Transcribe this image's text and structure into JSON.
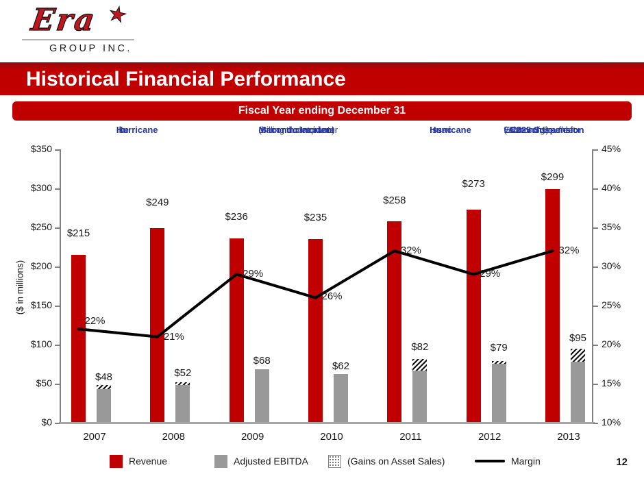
{
  "logo": {
    "brand": "Era",
    "star": "★",
    "subtitle": "GROUP INC."
  },
  "header": {
    "title": "Historical Financial Performance"
  },
  "subheader": {
    "label": "Fiscal Year ending December 31"
  },
  "page_number": "12",
  "colors": {
    "accent_red": "#c00000",
    "bar_gray": "#999999",
    "annotation_blue": "#2438a6",
    "axis_line": "#808080",
    "baseline": "#a6a6a6",
    "text": "#1a1a1a",
    "margin_line": "#000000"
  },
  "chart_data": {
    "type": "bar",
    "subtype": "grouped-bars-with-line-overlay",
    "categories": [
      "2007",
      "2008",
      "2009",
      "2010",
      "2011",
      "2012",
      "2013"
    ],
    "series": [
      {
        "name": "Revenue",
        "type": "bar",
        "axis": "left",
        "color": "#c00000",
        "values": [
          215,
          249,
          236,
          235,
          258,
          273,
          299
        ],
        "value_labels": [
          "$215",
          "$249",
          "$236",
          "$235",
          "$258",
          "$273",
          "$299"
        ]
      },
      {
        "name": "Adjusted EBITDA",
        "type": "bar",
        "axis": "left",
        "color": "#999999",
        "values": [
          48,
          52,
          68,
          62,
          82,
          79,
          95
        ],
        "value_labels": [
          "$48",
          "$52",
          "$68",
          "$62",
          "$82",
          "$79",
          "$95"
        ],
        "gains_on_asset_sales_portion": [
          5,
          4,
          0,
          0,
          15,
          4,
          17
        ]
      },
      {
        "name": "Margin",
        "type": "line",
        "axis": "right",
        "color": "#000000",
        "values": [
          22,
          21,
          29,
          26,
          32,
          29,
          32
        ],
        "value_labels": [
          "22%",
          "21%",
          "29%",
          "26%",
          "32%",
          "29%",
          "32%"
        ]
      }
    ],
    "left_axis": {
      "title": "($ in millions)",
      "min": 0,
      "max": 350,
      "tick_labels": [
        "$350",
        "$300",
        "$250",
        "$200",
        "$150",
        "$100",
        "$50",
        "$0"
      ]
    },
    "right_axis": {
      "min": 10,
      "max": 45,
      "tick_labels": [
        "45%",
        "40%",
        "35%",
        "30%",
        "25%",
        "20%",
        "15%",
        "10%"
      ]
    },
    "gridlines": false,
    "legend_position": "bottom",
    "annotations": [
      {
        "anchor_category": "2008",
        "bold_lines": [
          "Hurricane",
          "Ike"
        ],
        "normal_lines": []
      },
      {
        "anchor_category": "2010",
        "bold_lines": [
          "Macondo Incident"
        ],
        "normal_lines": [
          "(6 month deepwater",
          "drilling moratorium)"
        ]
      },
      {
        "anchor_category": "2012",
        "bold_lines": [
          "Hurricane",
          "Issac"
        ],
        "normal_lines": []
      },
      {
        "anchor_category": "2013",
        "bold_lines": [
          "EC225 Suspension"
        ],
        "normal_lines": [
          "(~25% of Era fleet",
          "value on ground for",
          "~9 months)"
        ]
      }
    ],
    "legend": [
      {
        "label": "Revenue",
        "swatch": "red-square"
      },
      {
        "label": "Adjusted EBITDA",
        "swatch": "gray-square"
      },
      {
        "label": "(Gains on Asset Sales)",
        "swatch": "hatch-square"
      },
      {
        "label": "Margin",
        "swatch": "black-line"
      }
    ]
  }
}
